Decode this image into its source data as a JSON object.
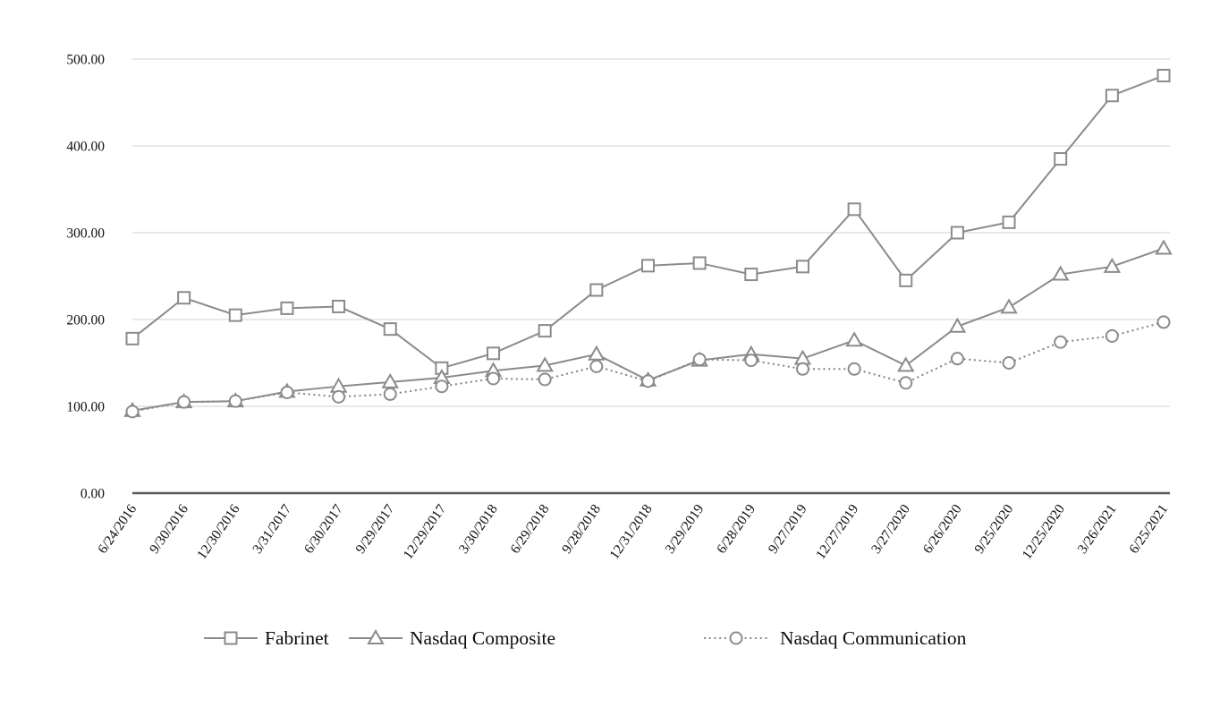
{
  "chart_data": {
    "type": "line",
    "title": "",
    "xlabel": "",
    "ylabel": "",
    "categories": [
      "6/24/2016",
      "9/30/2016",
      "12/30/2016",
      "3/31/2017",
      "6/30/2017",
      "9/29/2017",
      "12/29/2017",
      "3/30/2018",
      "6/29/2018",
      "9/28/2018",
      "12/31/2018",
      "3/29/2019",
      "6/28/2019",
      "9/27/2019",
      "12/27/2019",
      "3/27/2020",
      "6/26/2020",
      "9/25/2020",
      "12/25/2020",
      "3/26/2021",
      "6/25/2021"
    ],
    "series": [
      {
        "name": "Fabrinet",
        "marker": "square",
        "line_style": "solid",
        "values": [
          178,
          225,
          205,
          213,
          215,
          189,
          144,
          161,
          187,
          234,
          262,
          265,
          252,
          261,
          327,
          245,
          300,
          312,
          385,
          458,
          481
        ]
      },
      {
        "name": "Nasdaq Composite",
        "marker": "triangle",
        "line_style": "solid",
        "values": [
          95,
          105,
          106,
          117,
          123,
          128,
          133,
          141,
          147,
          160,
          130,
          153,
          160,
          155,
          176,
          147,
          192,
          214,
          252,
          261,
          282
        ]
      },
      {
        "name": "Nasdaq Communication",
        "marker": "circle",
        "line_style": "dotted",
        "values": [
          94,
          105,
          106,
          116,
          111,
          114,
          123,
          132,
          131,
          146,
          129,
          154,
          153,
          143,
          143,
          127,
          155,
          150,
          174,
          181,
          197
        ]
      }
    ],
    "y_ticks": [
      {
        "value": 0,
        "label": "0.00"
      },
      {
        "value": 100,
        "label": "100.00"
      },
      {
        "value": 200,
        "label": "200.00"
      },
      {
        "value": 300,
        "label": "300.00"
      },
      {
        "value": 400,
        "label": "400.00"
      },
      {
        "value": 500,
        "label": "500.00"
      }
    ],
    "ylim": [
      0,
      500
    ],
    "grid": true,
    "legend_position": "bottom",
    "colors": {
      "series": "#8b8b8b",
      "gridline": "#d9d9d9",
      "axis": "#595959",
      "label_text": "#0d0d0d",
      "legend_text": "#0d0d0d",
      "marker_fill": "#ffffff",
      "background": "#ffffff"
    }
  }
}
